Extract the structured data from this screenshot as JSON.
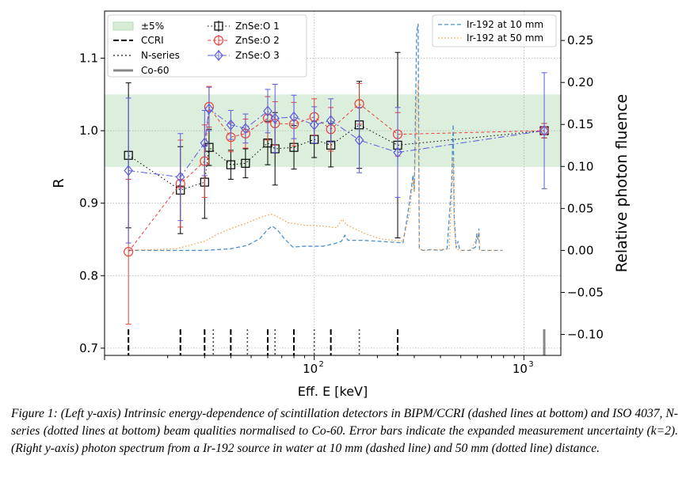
{
  "chart_data": {
    "type": "line",
    "xlabel": "Eff. E [keV]",
    "x_scale": "log",
    "xlim": [
      10,
      1500
    ],
    "x_ticks": [
      {
        "value": 100,
        "base": "10",
        "exp": "2"
      },
      {
        "value": 1000,
        "base": "10",
        "exp": "3"
      }
    ],
    "left_axis": {
      "label": "R",
      "ylim": [
        0.69,
        1.165
      ],
      "ticks": [
        "0.7",
        "0.8",
        "0.9",
        "1.0",
        "1.1"
      ],
      "tick_values": [
        0.7,
        0.8,
        0.9,
        1.0,
        1.1
      ]
    },
    "right_axis": {
      "label": "Relative photon fluence",
      "ylim": [
        -0.125,
        0.285
      ],
      "ticks": [
        "−0.10",
        "−0.05",
        "0.00",
        "0.05",
        "0.10",
        "0.15",
        "0.20",
        "0.25"
      ],
      "tick_values": [
        -0.1,
        -0.05,
        0.0,
        0.05,
        0.1,
        0.15,
        0.2,
        0.25
      ]
    },
    "grid": true,
    "band": {
      "name": "±5%",
      "range": [
        0.95,
        1.05
      ],
      "color": "#d6ecd6"
    },
    "beam_markers": {
      "ccri": {
        "name": "CCRI",
        "energies": [
          13,
          23,
          30,
          40,
          60,
          80,
          120,
          250
        ]
      },
      "n_series": {
        "name": "N-series",
        "energies": [
          33,
          48,
          65,
          100,
          164
        ]
      },
      "co60": {
        "name": "Co-60",
        "energies": [
          1250
        ],
        "color": "#888888"
      }
    },
    "series": [
      {
        "name": "ZnSe:O 1",
        "axis": "left",
        "color": "#000000",
        "marker": "square",
        "dash": "1.5,3",
        "points": [
          {
            "x": 13,
            "y": 0.966,
            "err": 0.1
          },
          {
            "x": 23,
            "y": 0.918,
            "err": 0.06
          },
          {
            "x": 30,
            "y": 0.929,
            "err": 0.05
          },
          {
            "x": 31.5,
            "y": 0.977,
            "err": 0.025
          },
          {
            "x": 40,
            "y": 0.953,
            "err": 0.02
          },
          {
            "x": 47,
            "y": 0.955,
            "err": 0.02
          },
          {
            "x": 60,
            "y": 0.983,
            "err": 0.03
          },
          {
            "x": 65,
            "y": 0.975,
            "err": 0.05
          },
          {
            "x": 80,
            "y": 0.977,
            "err": 0.03
          },
          {
            "x": 100,
            "y": 0.988,
            "err": 0.025
          },
          {
            "x": 120,
            "y": 0.98,
            "err": 0.03
          },
          {
            "x": 164,
            "y": 1.008,
            "err": 0.06
          },
          {
            "x": 250,
            "y": 0.98,
            "err": 0.128
          },
          {
            "x": 1250,
            "y": 1.0,
            "err": 0.01
          }
        ]
      },
      {
        "name": "ZnSe:O 2",
        "axis": "left",
        "color": "#e8413a",
        "marker": "circle",
        "dash": "4,3",
        "points": [
          {
            "x": 13,
            "y": 0.833,
            "err": 0.1
          },
          {
            "x": 23,
            "y": 0.927,
            "err": 0.06
          },
          {
            "x": 30,
            "y": 0.958,
            "err": 0.05
          },
          {
            "x": 31.5,
            "y": 1.033,
            "err": 0.028
          },
          {
            "x": 40,
            "y": 0.991,
            "err": 0.02
          },
          {
            "x": 47,
            "y": 0.996,
            "err": 0.02
          },
          {
            "x": 60,
            "y": 1.017,
            "err": 0.03
          },
          {
            "x": 65,
            "y": 1.01,
            "err": 0.03
          },
          {
            "x": 80,
            "y": 1.009,
            "err": 0.03
          },
          {
            "x": 100,
            "y": 1.019,
            "err": 0.025
          },
          {
            "x": 120,
            "y": 1.002,
            "err": 0.03
          },
          {
            "x": 164,
            "y": 1.037,
            "err": 0.028
          },
          {
            "x": 250,
            "y": 0.995,
            "err": 0.03
          },
          {
            "x": 1250,
            "y": 1.0,
            "err": 0.01
          }
        ]
      },
      {
        "name": "ZnSe:O 3",
        "axis": "left",
        "color": "#5b5be0",
        "marker": "diamond",
        "dash": "8,3,2,3",
        "points": [
          {
            "x": 13,
            "y": 0.945,
            "err": 0.1
          },
          {
            "x": 23,
            "y": 0.936,
            "err": 0.06
          },
          {
            "x": 30,
            "y": 0.983,
            "err": 0.045
          },
          {
            "x": 31.5,
            "y": 1.03,
            "err": 0.03
          },
          {
            "x": 40,
            "y": 1.008,
            "err": 0.02
          },
          {
            "x": 47,
            "y": 1.003,
            "err": 0.02
          },
          {
            "x": 60,
            "y": 1.027,
            "err": 0.03
          },
          {
            "x": 65,
            "y": 1.017,
            "err": 0.047
          },
          {
            "x": 80,
            "y": 1.019,
            "err": 0.03
          },
          {
            "x": 100,
            "y": 1.008,
            "err": 0.025
          },
          {
            "x": 120,
            "y": 1.014,
            "err": 0.03
          },
          {
            "x": 164,
            "y": 0.987,
            "err": 0.045
          },
          {
            "x": 250,
            "y": 0.97,
            "err": 0.062
          },
          {
            "x": 1250,
            "y": 1.0,
            "err": 0.08
          }
        ]
      },
      {
        "name": "Ir-192 at 10 mm",
        "axis": "right",
        "color": "#4a8fd1",
        "dash": "5,3",
        "points": [
          {
            "x": 13,
            "y": 0.0
          },
          {
            "x": 20,
            "y": 0.0
          },
          {
            "x": 30,
            "y": 0.0
          },
          {
            "x": 40,
            "y": 0.002
          },
          {
            "x": 48,
            "y": 0.006
          },
          {
            "x": 55,
            "y": 0.014
          },
          {
            "x": 60,
            "y": 0.025
          },
          {
            "x": 63,
            "y": 0.029
          },
          {
            "x": 67,
            "y": 0.024
          },
          {
            "x": 72,
            "y": 0.014
          },
          {
            "x": 79,
            "y": 0.004
          },
          {
            "x": 90,
            "y": 0.005
          },
          {
            "x": 110,
            "y": 0.005
          },
          {
            "x": 125,
            "y": 0.008
          },
          {
            "x": 135,
            "y": 0.011
          },
          {
            "x": 140,
            "y": 0.018
          },
          {
            "x": 145,
            "y": 0.012
          },
          {
            "x": 155,
            "y": 0.012
          },
          {
            "x": 170,
            "y": 0.012
          },
          {
            "x": 200,
            "y": 0.011
          },
          {
            "x": 230,
            "y": 0.01
          },
          {
            "x": 265,
            "y": 0.009
          },
          {
            "x": 280,
            "y": 0.045
          },
          {
            "x": 296,
            "y": 0.09
          },
          {
            "x": 300,
            "y": 0.07
          },
          {
            "x": 308,
            "y": 0.26
          },
          {
            "x": 313,
            "y": 0.27
          },
          {
            "x": 317,
            "y": 0.002
          },
          {
            "x": 330,
            "y": 0.0
          },
          {
            "x": 360,
            "y": 0.001
          },
          {
            "x": 400,
            "y": 0.0
          },
          {
            "x": 430,
            "y": 0.002
          },
          {
            "x": 452,
            "y": 0.08
          },
          {
            "x": 460,
            "y": 0.15
          },
          {
            "x": 465,
            "y": 0.04
          },
          {
            "x": 475,
            "y": 0.003
          },
          {
            "x": 485,
            "y": 0.011
          },
          {
            "x": 495,
            "y": 0.0
          },
          {
            "x": 550,
            "y": 0.0
          },
          {
            "x": 588,
            "y": 0.004
          },
          {
            "x": 596,
            "y": 0.02
          },
          {
            "x": 604,
            "y": 0.013
          },
          {
            "x": 610,
            "y": 0.026
          },
          {
            "x": 614,
            "y": 0.0
          },
          {
            "x": 700,
            "y": 0.0
          },
          {
            "x": 790,
            "y": 0.0
          }
        ]
      },
      {
        "name": "Ir-192 at 50 mm",
        "axis": "right",
        "color": "#f0a04a",
        "dash": "1.5,2.5",
        "points": [
          {
            "x": 13,
            "y": 0.0
          },
          {
            "x": 22,
            "y": 0.002
          },
          {
            "x": 30,
            "y": 0.011
          },
          {
            "x": 35,
            "y": 0.02
          },
          {
            "x": 40,
            "y": 0.026
          },
          {
            "x": 48,
            "y": 0.033
          },
          {
            "x": 55,
            "y": 0.039
          },
          {
            "x": 60,
            "y": 0.042
          },
          {
            "x": 63,
            "y": 0.043
          },
          {
            "x": 67,
            "y": 0.04
          },
          {
            "x": 75,
            "y": 0.033
          },
          {
            "x": 90,
            "y": 0.03
          },
          {
            "x": 110,
            "y": 0.029
          },
          {
            "x": 128,
            "y": 0.027
          },
          {
            "x": 136,
            "y": 0.037
          },
          {
            "x": 142,
            "y": 0.031
          },
          {
            "x": 155,
            "y": 0.026
          },
          {
            "x": 175,
            "y": 0.02
          },
          {
            "x": 205,
            "y": 0.014
          },
          {
            "x": 240,
            "y": 0.012
          },
          {
            "x": 265,
            "y": 0.011
          },
          {
            "x": 285,
            "y": 0.045
          },
          {
            "x": 296,
            "y": 0.085
          },
          {
            "x": 300,
            "y": 0.07
          },
          {
            "x": 308,
            "y": 0.18
          },
          {
            "x": 313,
            "y": 0.2
          },
          {
            "x": 317,
            "y": 0.002
          },
          {
            "x": 330,
            "y": 0.0
          },
          {
            "x": 400,
            "y": 0.001
          },
          {
            "x": 440,
            "y": 0.002
          },
          {
            "x": 452,
            "y": 0.06
          },
          {
            "x": 460,
            "y": 0.11
          },
          {
            "x": 465,
            "y": 0.03
          },
          {
            "x": 475,
            "y": 0.002
          },
          {
            "x": 495,
            "y": 0.0
          },
          {
            "x": 560,
            "y": 0.0
          },
          {
            "x": 596,
            "y": 0.016
          },
          {
            "x": 610,
            "y": 0.02
          },
          {
            "x": 614,
            "y": 0.0
          },
          {
            "x": 700,
            "y": 0.0
          },
          {
            "x": 790,
            "y": 0.0
          }
        ]
      }
    ],
    "legend_left_col1": [
      "±5%",
      "CCRI",
      "N-series",
      "Co-60"
    ],
    "legend_left_col2": [
      "ZnSe:O 1",
      "ZnSe:O 2",
      "ZnSe:O 3"
    ],
    "legend_right": [
      "Ir-192 at 10 mm",
      "Ir-192 at 50 mm"
    ]
  },
  "caption": "Figure 1: (Left y-axis) Intrinsic energy-dependence of scintillation detectors in BIPM/CCRI (dashed lines at bottom) and ISO 4037, N-series (dotted lines at bottom) beam qualities normalised to Co-60. Error bars indicate the expanded measurement uncertainty (k=2). (Right y-axis) photon spectrum from a Ir-192 source in water at 10 mm (dashed line) and 50 mm (dotted line) distance."
}
